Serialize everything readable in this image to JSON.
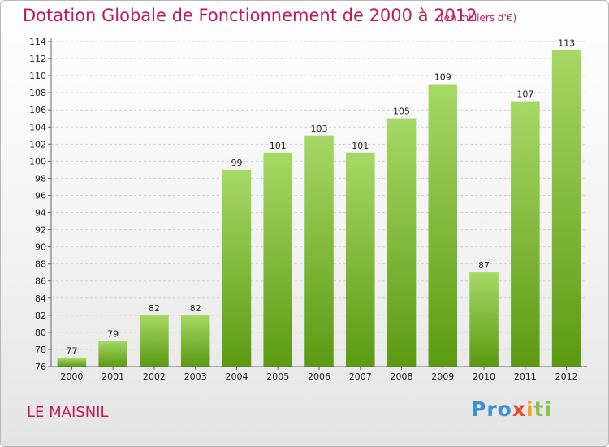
{
  "header": {
    "title": "Dotation Globale de Fonctionnement de 2000 à 2012",
    "subtitle": "(en milliers d'€)"
  },
  "footer": {
    "place": "LE MAISNIL",
    "logo": [
      "Pro",
      "x",
      "i",
      "ti"
    ]
  },
  "chart_data": {
    "type": "bar",
    "title": "Dotation Globale de Fonctionnement de 2000 à 2012",
    "subtitle": "(en milliers d'€)",
    "xlabel": "",
    "ylabel": "",
    "categories": [
      "2000",
      "2001",
      "2002",
      "2003",
      "2004",
      "2005",
      "2006",
      "2007",
      "2008",
      "2009",
      "2010",
      "2011",
      "2012"
    ],
    "values": [
      77,
      79,
      82,
      82,
      99,
      101,
      103,
      101,
      105,
      109,
      87,
      107,
      113
    ],
    "ylim": [
      76,
      114
    ],
    "yticks": [
      76,
      78,
      80,
      82,
      84,
      86,
      88,
      90,
      92,
      94,
      96,
      98,
      100,
      102,
      104,
      106,
      108,
      110,
      112,
      114
    ],
    "grid": true,
    "bar_color": "#7cbd2a",
    "bar_color_dark": "#5c9a12",
    "bar_color_light": "#a6d865"
  }
}
